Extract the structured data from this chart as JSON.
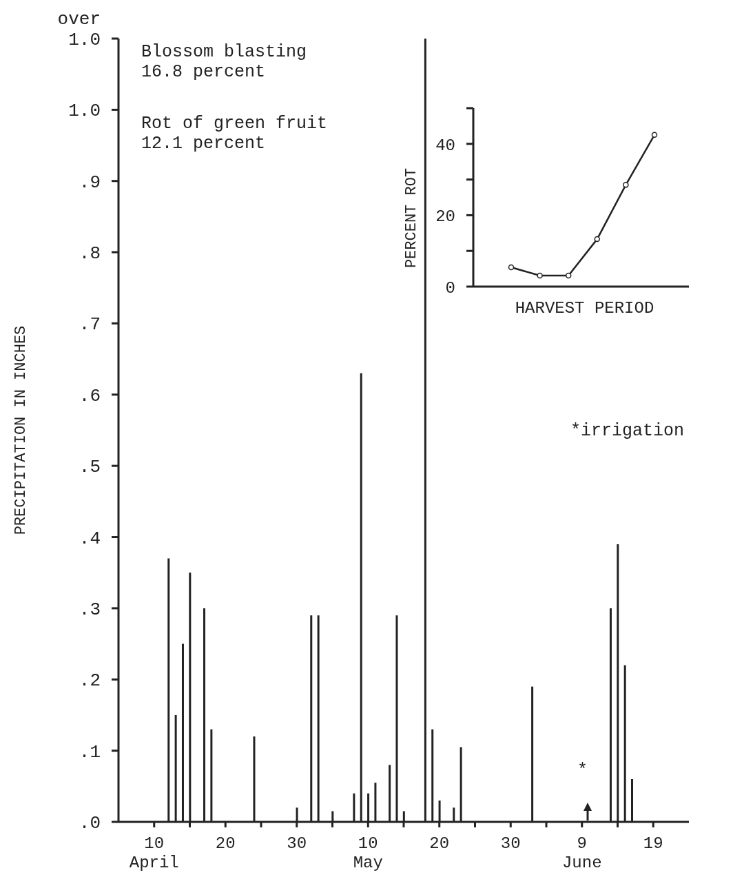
{
  "chart_data": [
    {
      "type": "bar",
      "ylabel": "PRECIPITATION IN INCHES",
      "color": "#222222",
      "x": [
        "--04-12",
        "--04-13",
        "--04-14",
        "--04-15",
        "--04-17",
        "--04-18",
        "--04-24",
        "--04-30",
        "--05-02",
        "--05-03",
        "--05-05",
        "--05-08",
        "--05-09",
        "--05-10",
        "--05-11",
        "--05-13",
        "--05-14",
        "--05-15",
        "--05-18",
        "--05-19",
        "--05-20",
        "--05-22",
        "--05-23",
        "--06-02",
        "--06-13",
        "--06-14",
        "--06-15",
        "--06-16"
      ],
      "values": [
        0.37,
        0.15,
        0.25,
        0.35,
        0.3,
        0.13,
        0.12,
        0.02,
        0.29,
        0.29,
        0.015,
        0.04,
        0.63,
        0.04,
        0.055,
        0.08,
        0.29,
        0.015,
        1.1,
        0.13,
        0.03,
        0.02,
        0.105,
        0.19,
        0.3,
        0.39,
        0.22,
        0.06
      ],
      "xlim": [
        "--04-05",
        "--06-24"
      ],
      "xticks": [
        {
          "value": "--04-10",
          "label": "10\nApril"
        },
        {
          "value": "--04-15",
          "label": null
        },
        {
          "value": "--04-20",
          "label": "20"
        },
        {
          "value": "--04-25",
          "label": null
        },
        {
          "value": "--04-30",
          "label": "30"
        },
        {
          "value": "--05-05",
          "label": null
        },
        {
          "value": "--05-10",
          "label": "10\nMay"
        },
        {
          "value": "--05-15",
          "label": null
        },
        {
          "value": "--05-20",
          "label": "20"
        },
        {
          "value": "--05-25",
          "label": null
        },
        {
          "value": "--05-30",
          "label": "30"
        },
        {
          "value": "--06-04",
          "label": null
        },
        {
          "value": "--06-09",
          "label": "9\nJune"
        },
        {
          "value": "--06-14",
          "label": null
        },
        {
          "value": "--06-19",
          "label": "19"
        }
      ],
      "ylim": [
        0,
        1.1
      ],
      "yticks": [
        {
          "value": 0,
          "label": ".0"
        },
        {
          "value": 0.1,
          "label": ".1"
        },
        {
          "value": 0.2,
          "label": ".2"
        },
        {
          "value": 0.3,
          "label": ".3"
        },
        {
          "value": 0.4,
          "label": ".4"
        },
        {
          "value": 0.5,
          "label": ".5"
        },
        {
          "value": 0.6,
          "label": ".6"
        },
        {
          "value": 0.7,
          "label": ".7"
        },
        {
          "value": 0.8,
          "label": ".8"
        },
        {
          "value": 0.9,
          "label": ".9"
        },
        {
          "value": 1.0,
          "label": "1.0"
        },
        {
          "value": 1.1,
          "label": "over\n1.0"
        }
      ],
      "annotations": [
        "Blossom blasting\n16.8 percent",
        "Rot of green fruit\n12.1 percent",
        "*irrigation",
        "*"
      ]
    },
    {
      "type": "line",
      "ylabel": "PERCENT ROT",
      "xlabel": "HARVEST PERIOD",
      "color": "#222222",
      "marker": "circle",
      "tick_labels": "y",
      "categories": [
        null,
        null,
        null,
        null,
        null,
        null
      ],
      "values": [
        5.4,
        3.1,
        3.1,
        13.3,
        28.5,
        42.5
      ],
      "ylim": [
        0,
        50
      ],
      "yticks": [
        0,
        {
          "value": 10,
          "label": null
        },
        20,
        {
          "value": 30,
          "label": null
        },
        40,
        {
          "value": 50,
          "label": null
        }
      ]
    }
  ]
}
